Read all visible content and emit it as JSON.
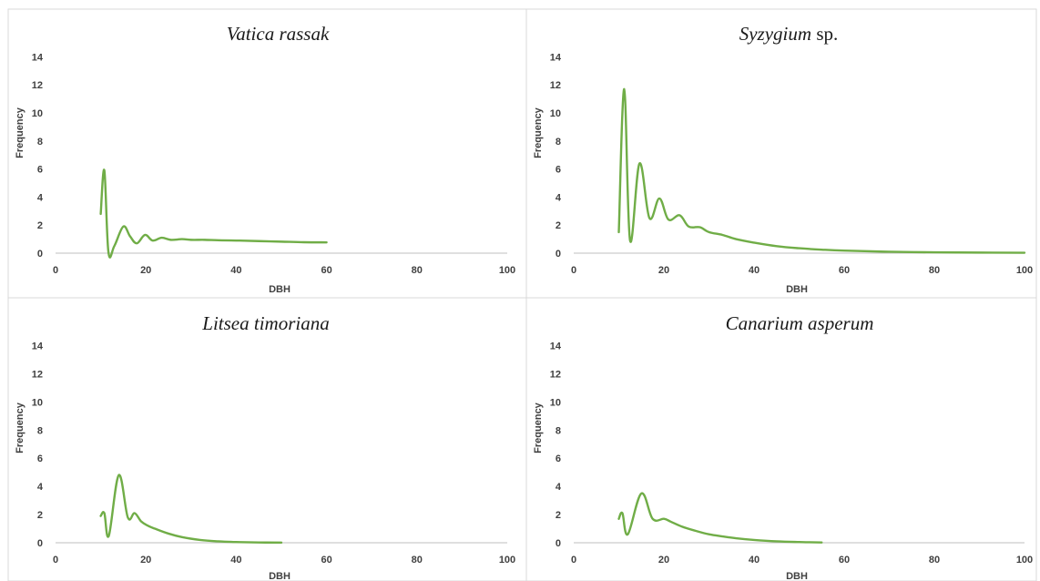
{
  "chart_data": [
    {
      "type": "line",
      "title": {
        "italic": "Vatica rassak",
        "plain": ""
      },
      "xlabel": "DBH",
      "ylabel": "Frequency",
      "xlim": [
        0,
        100
      ],
      "ylim": [
        0,
        15
      ],
      "xticks": [
        0,
        20,
        40,
        60,
        80,
        100
      ],
      "yticks": [
        0,
        2,
        4,
        6,
        8,
        10,
        12,
        14
      ],
      "grid": false,
      "line_color": "#70ad47",
      "series": [
        {
          "x": [
            10,
            10.8,
            11.7,
            13,
            15,
            16.5,
            18,
            19.8,
            21.5,
            23.5,
            25.5,
            28,
            30,
            33,
            36,
            40,
            45,
            50,
            55,
            60
          ],
          "y": [
            2.8,
            5.9,
            0.1,
            0.5,
            1.9,
            1.2,
            0.7,
            1.3,
            0.9,
            1.1,
            0.95,
            1.0,
            0.95,
            0.95,
            0.92,
            0.9,
            0.86,
            0.82,
            0.78,
            0.77
          ]
        }
      ]
    },
    {
      "type": "line",
      "title": {
        "italic": "Syzygium",
        "plain": " sp."
      },
      "xlabel": "DBH",
      "ylabel": "Frequency",
      "xlim": [
        0,
        100
      ],
      "ylim": [
        0,
        15
      ],
      "xticks": [
        0,
        20,
        40,
        60,
        80,
        100
      ],
      "yticks": [
        0,
        2,
        4,
        6,
        8,
        10,
        12,
        14
      ],
      "grid": false,
      "line_color": "#70ad47",
      "series": [
        {
          "x": [
            10,
            11.2,
            12.5,
            14.6,
            16.8,
            19,
            21,
            23.5,
            25.5,
            28,
            30,
            33,
            36,
            40,
            45,
            50,
            55,
            60,
            70,
            80,
            90,
            100
          ],
          "y": [
            1.5,
            11.7,
            0.9,
            6.4,
            2.5,
            3.9,
            2.4,
            2.7,
            1.9,
            1.85,
            1.5,
            1.3,
            1.0,
            0.75,
            0.5,
            0.35,
            0.25,
            0.18,
            0.1,
            0.06,
            0.04,
            0.03
          ]
        }
      ]
    },
    {
      "type": "line",
      "title": {
        "italic": "Litsea timoriana",
        "plain": ""
      },
      "xlabel": "DBH",
      "ylabel": "Frequency",
      "xlim": [
        0,
        100
      ],
      "ylim": [
        0,
        15
      ],
      "xticks": [
        0,
        20,
        40,
        60,
        80,
        100
      ],
      "yticks": [
        0,
        2,
        4,
        6,
        8,
        10,
        12,
        14
      ],
      "grid": false,
      "line_color": "#70ad47",
      "series": [
        {
          "x": [
            10,
            10.8,
            11.8,
            14,
            16,
            17.5,
            19,
            20.5,
            22,
            25,
            28,
            32,
            36,
            40,
            45,
            50
          ],
          "y": [
            1.9,
            2.1,
            0.5,
            4.8,
            1.8,
            2.1,
            1.5,
            1.2,
            1.0,
            0.65,
            0.4,
            0.2,
            0.1,
            0.05,
            0.02,
            0.01
          ]
        }
      ]
    },
    {
      "type": "line",
      "title": {
        "italic": "Canarium asperum",
        "plain": ""
      },
      "xlabel": "DBH",
      "ylabel": "Frequency",
      "xlim": [
        0,
        100
      ],
      "ylim": [
        0,
        15
      ],
      "xticks": [
        0,
        20,
        40,
        60,
        80,
        100
      ],
      "yticks": [
        0,
        2,
        4,
        6,
        8,
        10,
        12,
        14
      ],
      "grid": false,
      "line_color": "#70ad47",
      "series": [
        {
          "x": [
            10,
            10.8,
            12,
            15,
            17.5,
            20,
            21.5,
            24,
            27,
            30,
            33,
            36,
            40,
            45,
            50,
            55
          ],
          "y": [
            1.7,
            2.1,
            0.6,
            3.5,
            1.7,
            1.7,
            1.5,
            1.15,
            0.85,
            0.6,
            0.45,
            0.32,
            0.2,
            0.1,
            0.05,
            0.02
          ]
        }
      ]
    }
  ]
}
